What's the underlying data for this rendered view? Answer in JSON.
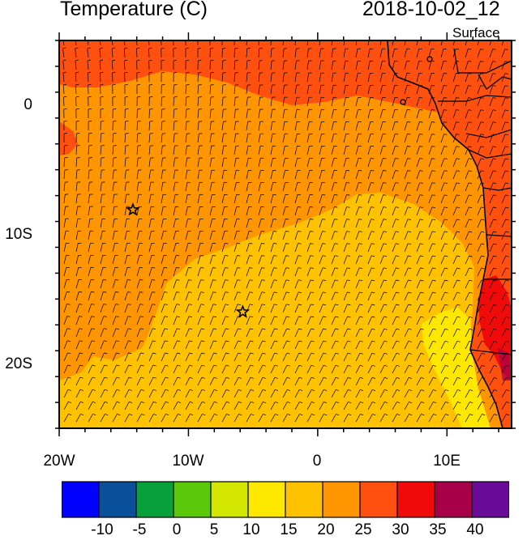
{
  "titles": {
    "left": "Temperature (C)",
    "right": "2018-10-02_12",
    "level": "Surface"
  },
  "axes": {
    "x_tick_labels": [
      "20W",
      "10W",
      "0",
      "10E"
    ],
    "y_tick_labels": [
      "0",
      "10S",
      "20S"
    ],
    "lon_range": [
      -20,
      15
    ],
    "lat_range": [
      -25,
      5
    ]
  },
  "colorbar": {
    "colors": [
      "#0000ff",
      "#0a4f9a",
      "#07a03a",
      "#5cc80a",
      "#d2e600",
      "#ffe800",
      "#ffc200",
      "#ff9500",
      "#ff5010",
      "#f00a0a",
      "#a80048",
      "#6a0a98"
    ],
    "tick_labels": [
      "-10",
      "-5",
      "0",
      "5",
      "10",
      "15",
      "20",
      "25",
      "30",
      "35",
      "40"
    ]
  },
  "markers": [
    {
      "name": "star-marker-north",
      "lon": -14.3,
      "lat": -8.1
    },
    {
      "name": "star-marker-south",
      "lon": -5.8,
      "lat": -16.0
    }
  ]
}
